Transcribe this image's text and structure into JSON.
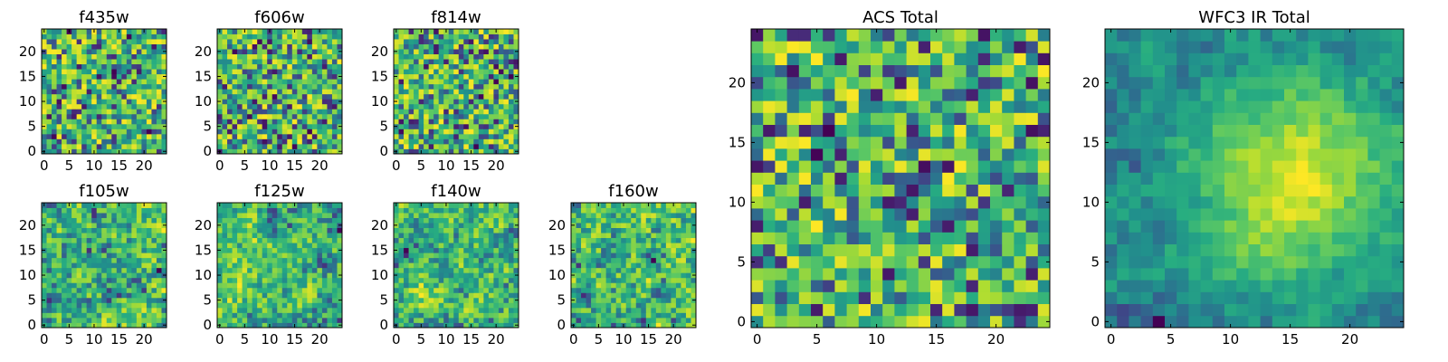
{
  "chart_data": [
    {
      "type": "heatmap",
      "title": "f435w",
      "grid_size": 25,
      "xlim": [
        0,
        24
      ],
      "ylim": [
        0,
        24
      ],
      "xticks": [
        0,
        5,
        10,
        15,
        20
      ],
      "yticks": [
        0,
        5,
        10,
        15,
        20
      ],
      "colormap": "viridis",
      "texture": "noisy",
      "seed": 11
    },
    {
      "type": "heatmap",
      "title": "f606w",
      "grid_size": 25,
      "xlim": [
        0,
        24
      ],
      "ylim": [
        0,
        24
      ],
      "xticks": [
        0,
        5,
        10,
        15,
        20
      ],
      "yticks": [
        0,
        5,
        10,
        15,
        20
      ],
      "colormap": "viridis",
      "texture": "noisy",
      "seed": 23
    },
    {
      "type": "heatmap",
      "title": "f814w",
      "grid_size": 25,
      "xlim": [
        0,
        24
      ],
      "ylim": [
        0,
        24
      ],
      "xticks": [
        0,
        5,
        10,
        15,
        20
      ],
      "yticks": [
        0,
        5,
        10,
        15,
        20
      ],
      "colormap": "viridis",
      "texture": "noisy",
      "seed": 37
    },
    {
      "type": "heatmap",
      "title": "f105w",
      "grid_size": 25,
      "xlim": [
        0,
        24
      ],
      "ylim": [
        0,
        24
      ],
      "xticks": [
        0,
        5,
        10,
        15,
        20
      ],
      "yticks": [
        0,
        5,
        10,
        15,
        20
      ],
      "colormap": "viridis",
      "texture": "smooth",
      "seed": 41
    },
    {
      "type": "heatmap",
      "title": "f125w",
      "grid_size": 25,
      "xlim": [
        0,
        24
      ],
      "ylim": [
        0,
        24
      ],
      "xticks": [
        0,
        5,
        10,
        15,
        20
      ],
      "yticks": [
        0,
        5,
        10,
        15,
        20
      ],
      "colormap": "viridis",
      "texture": "smooth",
      "seed": 53
    },
    {
      "type": "heatmap",
      "title": "f140w",
      "grid_size": 25,
      "xlim": [
        0,
        24
      ],
      "ylim": [
        0,
        24
      ],
      "xticks": [
        0,
        5,
        10,
        15,
        20
      ],
      "yticks": [
        0,
        5,
        10,
        15,
        20
      ],
      "colormap": "viridis",
      "texture": "smooth",
      "seed": 67
    },
    {
      "type": "heatmap",
      "title": "f160w",
      "grid_size": 25,
      "xlim": [
        0,
        24
      ],
      "ylim": [
        0,
        24
      ],
      "xticks": [
        0,
        5,
        10,
        15,
        20
      ],
      "yticks": [
        0,
        5,
        10,
        15,
        20
      ],
      "colormap": "viridis",
      "texture": "smooth",
      "seed": 79
    },
    {
      "type": "heatmap",
      "title": "ACS Total",
      "grid_size": 25,
      "xlim": [
        0,
        24
      ],
      "ylim": [
        0,
        24
      ],
      "xticks": [
        0,
        5,
        10,
        15,
        20
      ],
      "yticks": [
        0,
        5,
        10,
        15,
        20
      ],
      "colormap": "viridis",
      "texture": "noisy-bright",
      "seed": 83
    },
    {
      "type": "heatmap",
      "title": "WFC3 IR Total",
      "grid_size": 25,
      "xlim": [
        0,
        24
      ],
      "ylim": [
        0,
        24
      ],
      "xticks": [
        0,
        5,
        10,
        15,
        20
      ],
      "yticks": [
        0,
        5,
        10,
        15,
        20
      ],
      "colormap": "viridis",
      "texture": "smooth-blob",
      "seed": 97
    }
  ]
}
